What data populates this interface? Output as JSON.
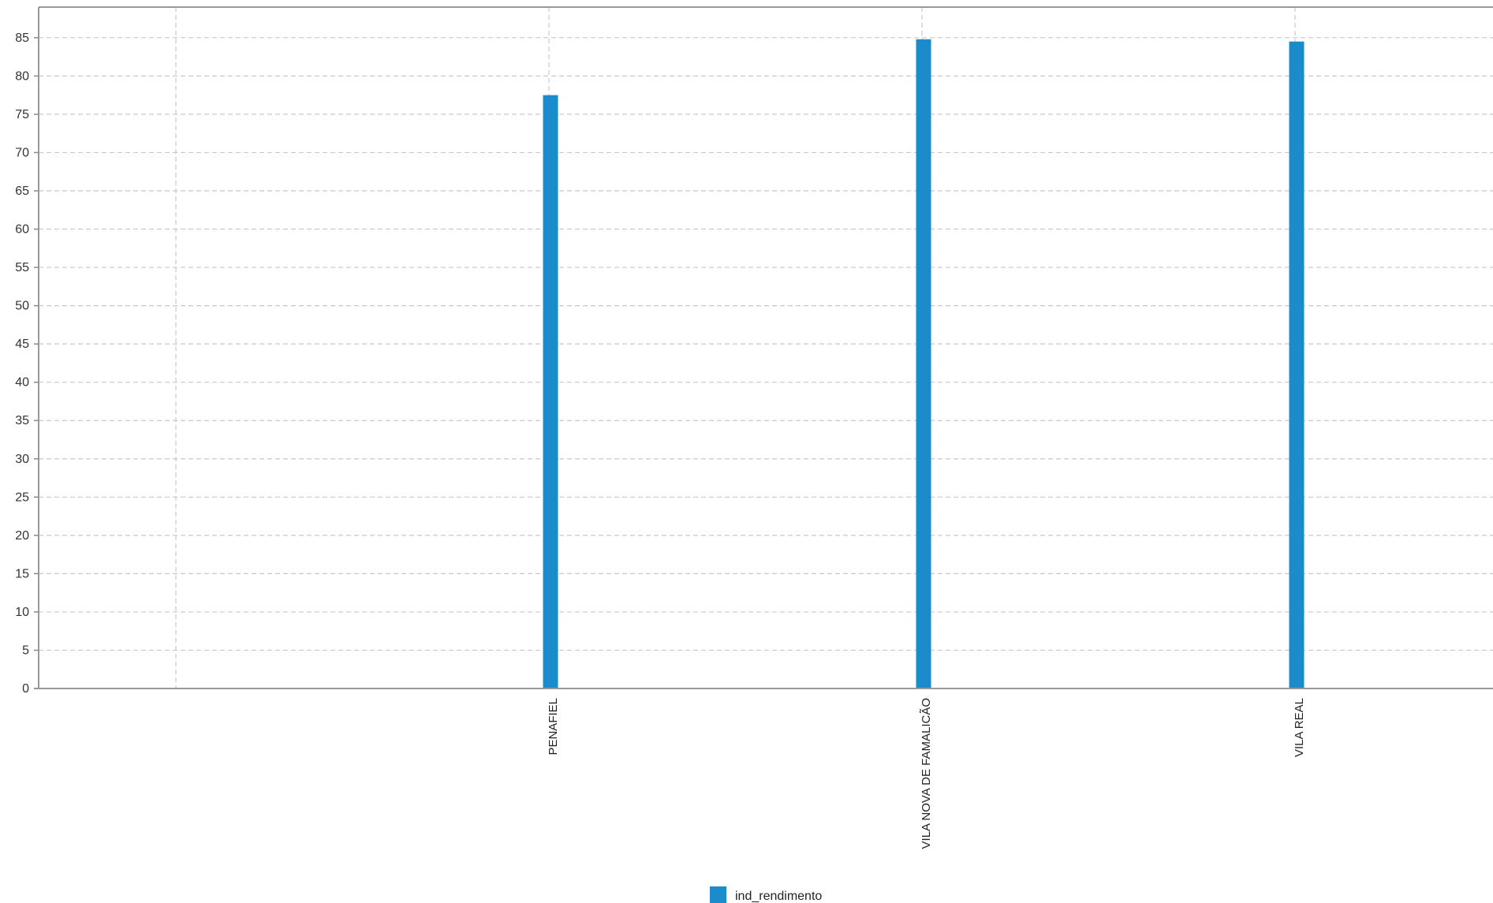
{
  "chart_data": {
    "type": "bar",
    "categories": [
      "",
      "PENAFIEL",
      "VILA NOVA DE FAMALICÃO",
      "VILA REAL"
    ],
    "series": [
      {
        "name": "ind_rendimento",
        "values": [
          null,
          77.5,
          84.8,
          84.5
        ],
        "color": "#1a8ccc"
      }
    ],
    "ylim": [
      0,
      89
    ],
    "yticks": [
      0,
      5,
      10,
      15,
      20,
      25,
      30,
      35,
      40,
      45,
      50,
      55,
      60,
      65,
      70,
      75,
      80,
      85
    ],
    "grid": true,
    "legend_position": "bottom-center",
    "title": "",
    "xlabel": "",
    "ylabel": ""
  },
  "legend": {
    "label": "ind_rendimento"
  }
}
